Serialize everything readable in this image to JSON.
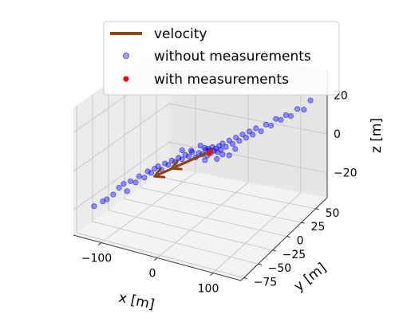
{
  "chart_data": {
    "type": "scatter",
    "projection": "3d",
    "axes": {
      "x": {
        "label": "x [m]",
        "ticks": [
          -100,
          0,
          100
        ],
        "range": [
          -150,
          150
        ]
      },
      "y": {
        "label": "y [m]",
        "ticks": [
          -75,
          -50,
          -25,
          0,
          25,
          50
        ],
        "range": [
          -80,
          70
        ]
      },
      "z": {
        "label": "z [m]",
        "ticks": [
          -20,
          0,
          20
        ],
        "range": [
          -33,
          33
        ]
      }
    },
    "grid": true,
    "legend": {
      "placement": "top-center",
      "entries": [
        "velocity",
        "without measurements",
        "with measurements"
      ]
    },
    "series": [
      {
        "name": "velocity",
        "kind": "arrows",
        "color": "#8B4513",
        "segments": [
          {
            "from": [
              6,
              3,
              1
            ],
            "to": [
              -60,
              -30,
              -8
            ]
          },
          {
            "from": [
              6,
              3,
              1
            ],
            "to": [
              -40,
              -20,
              -5
            ]
          }
        ]
      },
      {
        "name": "without measurements",
        "kind": "points",
        "color": "#0000ff",
        "points": [
          [
            -130,
            -65,
            -20
          ],
          [
            -120,
            -60,
            -18
          ],
          [
            -115,
            -58,
            -17
          ],
          [
            -108,
            -54,
            -15
          ],
          [
            -102,
            -50,
            -12
          ],
          [
            -96,
            -48,
            -10
          ],
          [
            -92,
            -46,
            -14
          ],
          [
            -88,
            -44,
            -9
          ],
          [
            -82,
            -41,
            -10
          ],
          [
            -78,
            -39,
            -7
          ],
          [
            -72,
            -36,
            -8
          ],
          [
            -68,
            -34,
            -5
          ],
          [
            -64,
            -32,
            -6
          ],
          [
            -60,
            -30,
            -4
          ],
          [
            -56,
            -28,
            -3
          ],
          [
            -52,
            -26,
            -5
          ],
          [
            -48,
            -24,
            -2
          ],
          [
            -44,
            -22,
            -3
          ],
          [
            -40,
            -20,
            -1
          ],
          [
            -36,
            -18,
            -2
          ],
          [
            -32,
            -16,
            0
          ],
          [
            -28,
            -14,
            -1
          ],
          [
            -24,
            -12,
            1
          ],
          [
            -20,
            -10,
            0
          ],
          [
            -16,
            -8,
            2
          ],
          [
            -12,
            -6,
            -1
          ],
          [
            -8,
            -4,
            1
          ],
          [
            -4,
            -2,
            0
          ],
          [
            0,
            0,
            2
          ],
          [
            2,
            1,
            -1
          ],
          [
            4,
            2,
            1
          ],
          [
            6,
            3,
            0
          ],
          [
            8,
            4,
            3
          ],
          [
            10,
            5,
            1
          ],
          [
            12,
            6,
            2
          ],
          [
            14,
            7,
            0
          ],
          [
            16,
            8,
            3
          ],
          [
            18,
            9,
            1
          ],
          [
            20,
            10,
            4
          ],
          [
            24,
            12,
            2
          ],
          [
            28,
            14,
            5
          ],
          [
            32,
            16,
            3
          ],
          [
            36,
            18,
            6
          ],
          [
            40,
            20,
            4
          ],
          [
            44,
            22,
            7
          ],
          [
            48,
            24,
            5
          ],
          [
            52,
            26,
            8
          ],
          [
            56,
            28,
            6
          ],
          [
            60,
            30,
            9
          ],
          [
            66,
            33,
            7
          ],
          [
            72,
            36,
            10
          ],
          [
            78,
            39,
            9
          ],
          [
            84,
            42,
            12
          ],
          [
            90,
            45,
            11
          ],
          [
            96,
            48,
            13
          ],
          [
            102,
            51,
            12
          ],
          [
            110,
            55,
            15
          ],
          [
            118,
            59,
            14
          ],
          [
            126,
            63,
            18
          ],
          [
            -5,
            3,
            2
          ],
          [
            3,
            -4,
            -2
          ],
          [
            10,
            -2,
            3
          ],
          [
            -2,
            6,
            1
          ],
          [
            15,
            5,
            -3
          ],
          [
            -12,
            2,
            3
          ],
          [
            22,
            8,
            -1
          ],
          [
            -20,
            -6,
            2
          ],
          [
            30,
            12,
            -2
          ],
          [
            -30,
            -12,
            3
          ],
          [
            38,
            15,
            1
          ]
        ]
      },
      {
        "name": "with measurements",
        "kind": "points",
        "color": "#ff0000",
        "points": [
          [
            6,
            3,
            1
          ],
          [
            4,
            2,
            0
          ],
          [
            5,
            1,
            1
          ]
        ]
      }
    ]
  }
}
